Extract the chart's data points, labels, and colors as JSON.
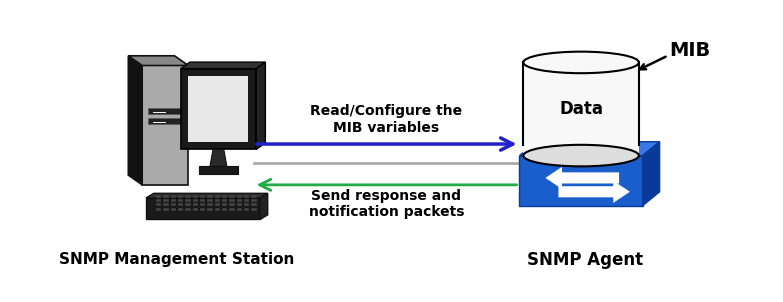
{
  "bg_color": "#ffffff",
  "arrow1_color": "#2222cc",
  "arrow2_color": "#22aa44",
  "connector_color": "#aaaaaa",
  "box_blue_front": "#1a5ecc",
  "box_blue_top": "#3a78e8",
  "box_blue_right": "#0a3a99",
  "label_top": "MIB",
  "label_data": "Data",
  "label_arrow1": "Read/Configure the\nMIB variables",
  "label_arrow2": "Send response and\nnotification packets",
  "label_left": "SNMP Management Station",
  "label_right": "SNMP Agent",
  "font_size_bottom": 11,
  "font_size_arrows": 10,
  "font_size_mib": 12,
  "font_size_data": 11
}
